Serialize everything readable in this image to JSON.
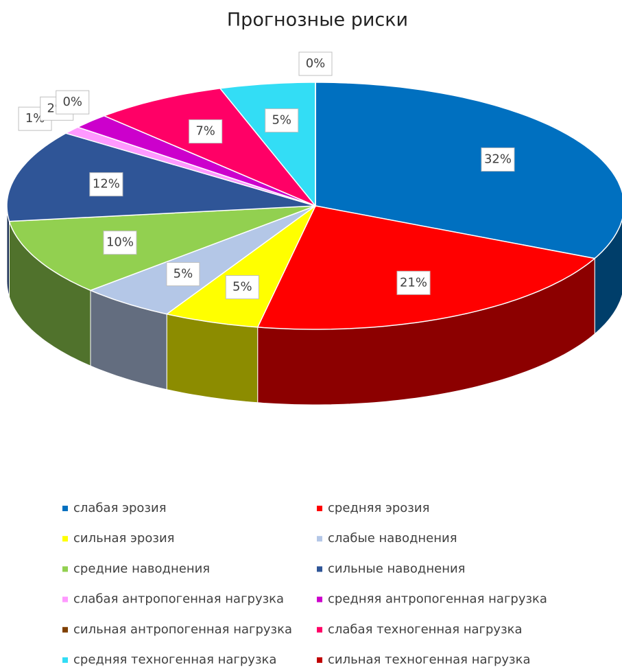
{
  "chart_data": {
    "type": "pie",
    "title": "Прогнозные риски",
    "categories": [
      "слабая эрозия",
      "средняя эрозия",
      "сильная эрозия",
      "слабые наводнения",
      "средние наводнения",
      "сильные наводнения",
      "слабая антропогенная нагрузка",
      "средняя антропогенная нагрузка",
      "сильная антропогенная нагрузка",
      "слабая техногенная нагрузка",
      "средняя техногенная нагрузка",
      "сильная техногенная нагрузка"
    ],
    "values": [
      32,
      21,
      5,
      5,
      10,
      12,
      1,
      2,
      0,
      7,
      5,
      0
    ],
    "value_labels": [
      "32%",
      "21%",
      "5%",
      "5%",
      "10%",
      "12%",
      "1%",
      "2%",
      "0%",
      "7%",
      "5%",
      "0%"
    ],
    "colors": [
      "#0070c0",
      "#ff0000",
      "#ffff00",
      "#b4c7e7",
      "#92d050",
      "#2f5597",
      "#ff99ff",
      "#cc00cc",
      "#7f3f00",
      "#ff0066",
      "#33ddf5",
      "#c00000"
    ]
  }
}
